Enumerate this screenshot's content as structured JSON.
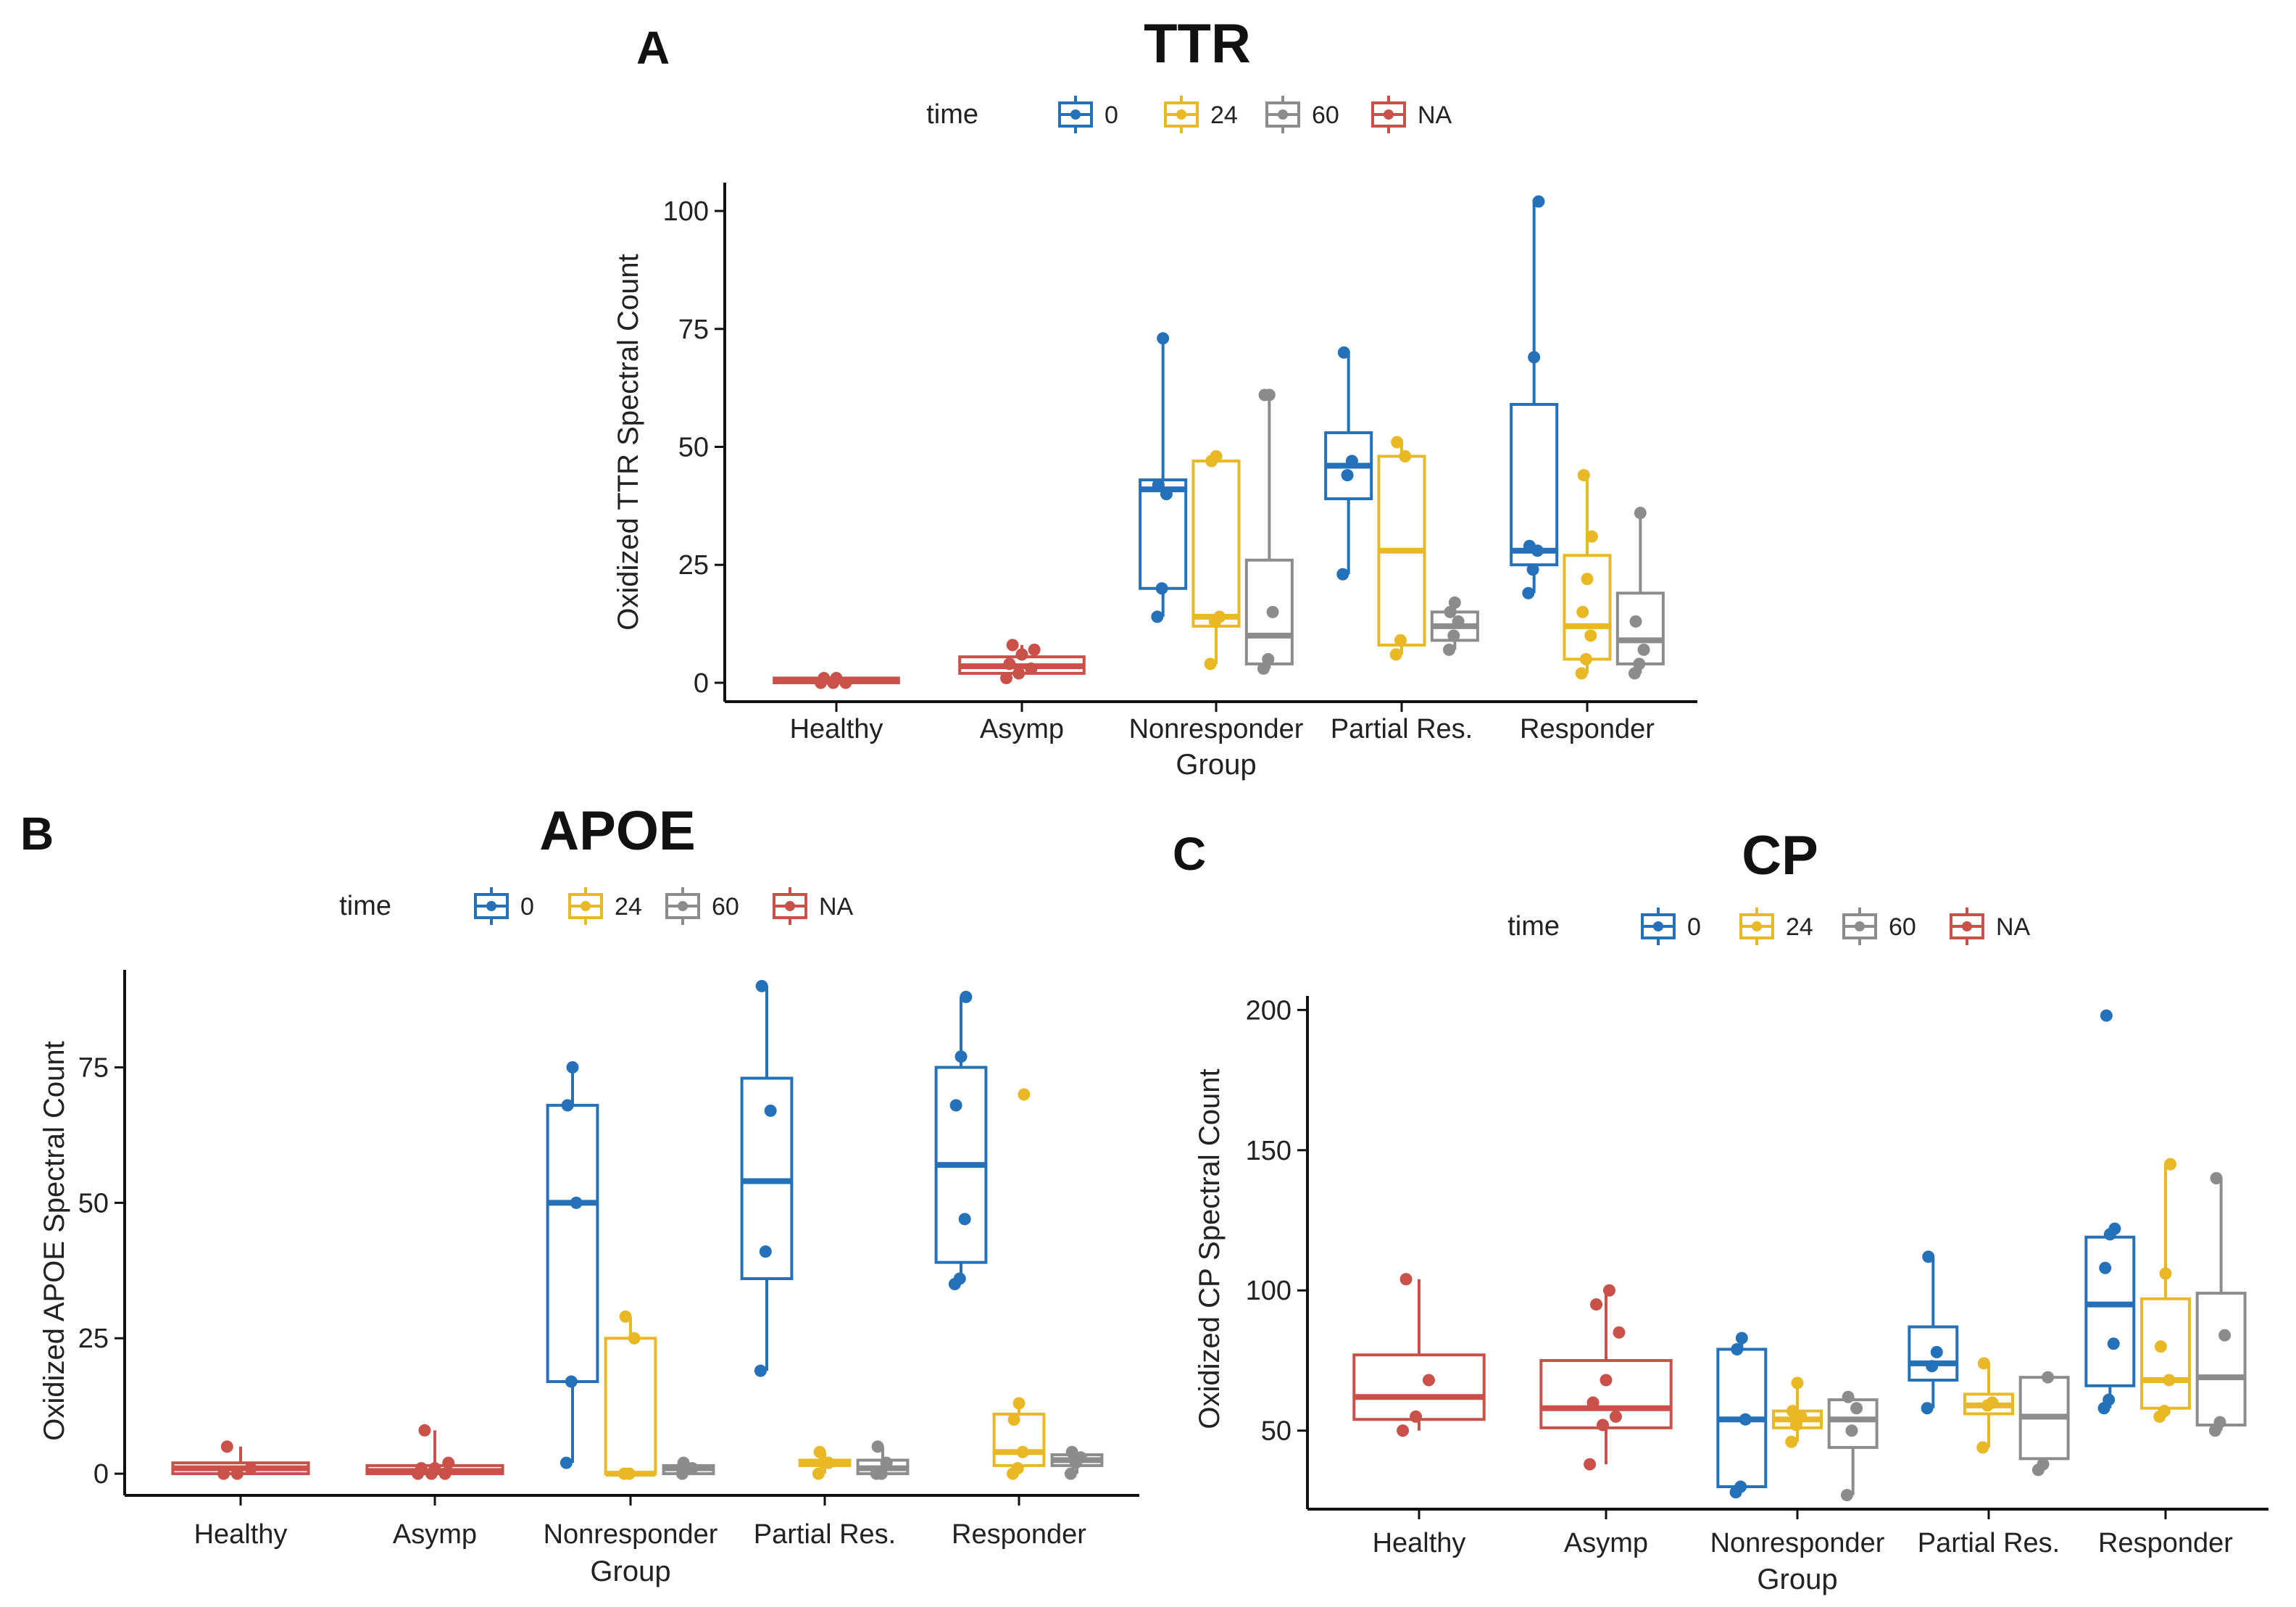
{
  "chart_data": [
    {
      "id": "A",
      "panel_letter": "A",
      "type": "boxplot",
      "title": "TTR",
      "xlabel": "Group",
      "ylabel": "Oxidized TTR Spectral Count",
      "ylim": [
        -4,
        106
      ],
      "yticks": [
        0,
        25,
        50,
        75,
        100
      ],
      "legend": {
        "title": "time",
        "entries": [
          "0",
          "24",
          "60",
          "NA"
        ],
        "placement": "top"
      },
      "categories": [
        "Healthy",
        "Asymp",
        "Nonresponder",
        "Partial Res.",
        "Responder"
      ],
      "boxes": [
        {
          "category": "Healthy",
          "series": "NA",
          "min": 0,
          "q1": 0,
          "median": 0.5,
          "q3": 1,
          "max": 1,
          "points": [
            0,
            0,
            0,
            1,
            1
          ]
        },
        {
          "category": "Asymp",
          "series": "NA",
          "min": 1,
          "q1": 2,
          "median": 3.5,
          "q3": 5.5,
          "max": 8,
          "points": [
            1,
            2,
            3,
            4,
            6,
            7,
            8
          ]
        },
        {
          "category": "Nonresponder",
          "series": "0",
          "min": 14,
          "q1": 20,
          "median": 41,
          "q3": 43,
          "max": 73,
          "points": [
            14,
            20,
            40,
            42,
            73
          ]
        },
        {
          "category": "Nonresponder",
          "series": "24",
          "min": 4,
          "q1": 12,
          "median": 14,
          "q3": 47,
          "max": 48,
          "points": [
            4,
            13,
            14,
            47,
            48
          ]
        },
        {
          "category": "Nonresponder",
          "series": "60",
          "min": 3,
          "q1": 4,
          "median": 10,
          "q3": 26,
          "max": 61,
          "points": [
            3,
            5,
            15,
            61,
            61
          ]
        },
        {
          "category": "Partial Res.",
          "series": "0",
          "min": 23,
          "q1": 39,
          "median": 46,
          "q3": 53,
          "max": 70,
          "points": [
            23,
            44,
            47,
            70
          ]
        },
        {
          "category": "Partial Res.",
          "series": "24",
          "min": 6,
          "q1": 8,
          "median": 28,
          "q3": 48,
          "max": 51,
          "points": [
            6,
            9,
            48,
            51
          ]
        },
        {
          "category": "Partial Res.",
          "series": "60",
          "min": 7,
          "q1": 9,
          "median": 12,
          "q3": 15,
          "max": 17,
          "points": [
            7,
            10,
            13,
            15,
            17
          ]
        },
        {
          "category": "Responder",
          "series": "0",
          "min": 19,
          "q1": 25,
          "median": 28,
          "q3": 59,
          "max": 102,
          "points": [
            19,
            24,
            28,
            29,
            69,
            102
          ]
        },
        {
          "category": "Responder",
          "series": "24",
          "min": 2,
          "q1": 5,
          "median": 12,
          "q3": 27,
          "max": 44,
          "points": [
            2,
            5,
            10,
            15,
            22,
            31,
            44
          ]
        },
        {
          "category": "Responder",
          "series": "60",
          "min": 2,
          "q1": 4,
          "median": 9,
          "q3": 19,
          "max": 36,
          "points": [
            2,
            4,
            7,
            13,
            36
          ]
        }
      ]
    },
    {
      "id": "B",
      "panel_letter": "B",
      "type": "boxplot",
      "title": "APOE",
      "xlabel": "Group",
      "ylabel": "Oxidized APOE Spectral Count",
      "ylim": [
        -4,
        93
      ],
      "yticks": [
        0,
        25,
        50,
        75
      ],
      "legend": {
        "title": "time",
        "entries": [
          "0",
          "24",
          "60",
          "NA"
        ],
        "placement": "top"
      },
      "categories": [
        "Healthy",
        "Asymp",
        "Nonresponder",
        "Partial Res.",
        "Responder"
      ],
      "boxes": [
        {
          "category": "Healthy",
          "series": "NA",
          "min": 0,
          "q1": 0,
          "median": 1,
          "q3": 2,
          "max": 5,
          "points": [
            0,
            0,
            1,
            5
          ]
        },
        {
          "category": "Asymp",
          "series": "NA",
          "min": 0,
          "q1": 0,
          "median": 0.5,
          "q3": 1.5,
          "max": 8,
          "points": [
            0,
            0,
            0,
            1,
            1,
            2,
            8
          ]
        },
        {
          "category": "Nonresponder",
          "series": "0",
          "min": 2,
          "q1": 17,
          "median": 50,
          "q3": 68,
          "max": 75,
          "points": [
            2,
            17,
            50,
            68,
            75
          ]
        },
        {
          "category": "Nonresponder",
          "series": "24",
          "min": 0,
          "q1": 0,
          "median": 0,
          "q3": 25,
          "max": 29,
          "points": [
            0,
            0,
            25,
            29
          ]
        },
        {
          "category": "Nonresponder",
          "series": "60",
          "min": 0,
          "q1": 0,
          "median": 1,
          "q3": 1.5,
          "max": 2,
          "points": [
            0,
            1,
            1,
            2
          ]
        },
        {
          "category": "Partial Res.",
          "series": "0",
          "min": 19,
          "q1": 36,
          "median": 54,
          "q3": 73,
          "max": 90,
          "points": [
            19,
            41,
            67,
            90
          ]
        },
        {
          "category": "Partial Res.",
          "series": "24",
          "min": 0,
          "q1": 1.5,
          "median": 2,
          "q3": 2.5,
          "max": 4,
          "points": [
            0,
            2,
            2,
            4
          ]
        },
        {
          "category": "Partial Res.",
          "series": "60",
          "min": 0,
          "q1": 0,
          "median": 1,
          "q3": 2.5,
          "max": 5,
          "points": [
            0,
            0,
            2,
            5
          ]
        },
        {
          "category": "Responder",
          "series": "0",
          "min": 35,
          "q1": 39,
          "median": 57,
          "q3": 75,
          "max": 88,
          "points": [
            35,
            36,
            47,
            68,
            77,
            88
          ]
        },
        {
          "category": "Responder",
          "series": "24",
          "min": 0,
          "q1": 1.5,
          "median": 4,
          "q3": 11,
          "max": 13,
          "points": [
            0,
            1,
            4,
            10,
            13,
            70
          ]
        },
        {
          "category": "Responder",
          "series": "60",
          "min": 0,
          "q1": 1.5,
          "median": 2.5,
          "q3": 3.5,
          "max": 4,
          "points": [
            0,
            2,
            3,
            4
          ]
        }
      ]
    },
    {
      "id": "C",
      "panel_letter": "C",
      "type": "boxplot",
      "title": "CP",
      "xlabel": "Group",
      "ylabel": "Oxidized CP Spectral Count",
      "ylim": [
        22,
        205
      ],
      "yticks": [
        50,
        100,
        150,
        200
      ],
      "legend": {
        "title": "time",
        "entries": [
          "0",
          "24",
          "60",
          "NA"
        ],
        "placement": "top"
      },
      "categories": [
        "Healthy",
        "Asymp",
        "Nonresponder",
        "Partial Res.",
        "Responder"
      ],
      "boxes": [
        {
          "category": "Healthy",
          "series": "NA",
          "min": 50,
          "q1": 54,
          "median": 62,
          "q3": 77,
          "max": 104,
          "points": [
            50,
            55,
            68,
            104
          ]
        },
        {
          "category": "Asymp",
          "series": "NA",
          "min": 38,
          "q1": 51,
          "median": 58,
          "q3": 75,
          "max": 100,
          "points": [
            38,
            52,
            55,
            60,
            68,
            85,
            95,
            100
          ]
        },
        {
          "category": "Nonresponder",
          "series": "0",
          "min": 28,
          "q1": 30,
          "median": 54,
          "q3": 79,
          "max": 83,
          "points": [
            28,
            30,
            54,
            79,
            83
          ]
        },
        {
          "category": "Nonresponder",
          "series": "24",
          "min": 46,
          "q1": 51,
          "median": 54,
          "q3": 57,
          "max": 67,
          "points": [
            46,
            52,
            55,
            57,
            67
          ]
        },
        {
          "category": "Nonresponder",
          "series": "60",
          "min": 27,
          "q1": 44,
          "median": 54,
          "q3": 61,
          "max": 62,
          "points": [
            27,
            50,
            58,
            62
          ]
        },
        {
          "category": "Partial Res.",
          "series": "0",
          "min": 58,
          "q1": 68,
          "median": 74,
          "q3": 87,
          "max": 112,
          "points": [
            58,
            73,
            78,
            112
          ]
        },
        {
          "category": "Partial Res.",
          "series": "24",
          "min": 44,
          "q1": 56,
          "median": 59,
          "q3": 63,
          "max": 74,
          "points": [
            44,
            59,
            60,
            74
          ]
        },
        {
          "category": "Partial Res.",
          "series": "60",
          "min": 36,
          "q1": 40,
          "median": 55,
          "q3": 69,
          "max": 69,
          "points": [
            36,
            38,
            69
          ]
        },
        {
          "category": "Responder",
          "series": "0",
          "min": 58,
          "q1": 66,
          "median": 95,
          "q3": 119,
          "max": 122,
          "points": [
            58,
            61,
            81,
            108,
            120,
            122,
            198
          ]
        },
        {
          "category": "Responder",
          "series": "24",
          "min": 55,
          "q1": 58,
          "median": 68,
          "q3": 97,
          "max": 145,
          "points": [
            55,
            57,
            68,
            80,
            106,
            145
          ]
        },
        {
          "category": "Responder",
          "series": "60",
          "min": 50,
          "q1": 52,
          "median": 69,
          "q3": 99,
          "max": 140,
          "points": [
            50,
            53,
            84,
            140
          ]
        }
      ]
    }
  ],
  "colors": {
    "0": "#2471b9",
    "24": "#e9b825",
    "60": "#8c8c8c",
    "NA": "#c9514a",
    "axis": "#111111"
  }
}
